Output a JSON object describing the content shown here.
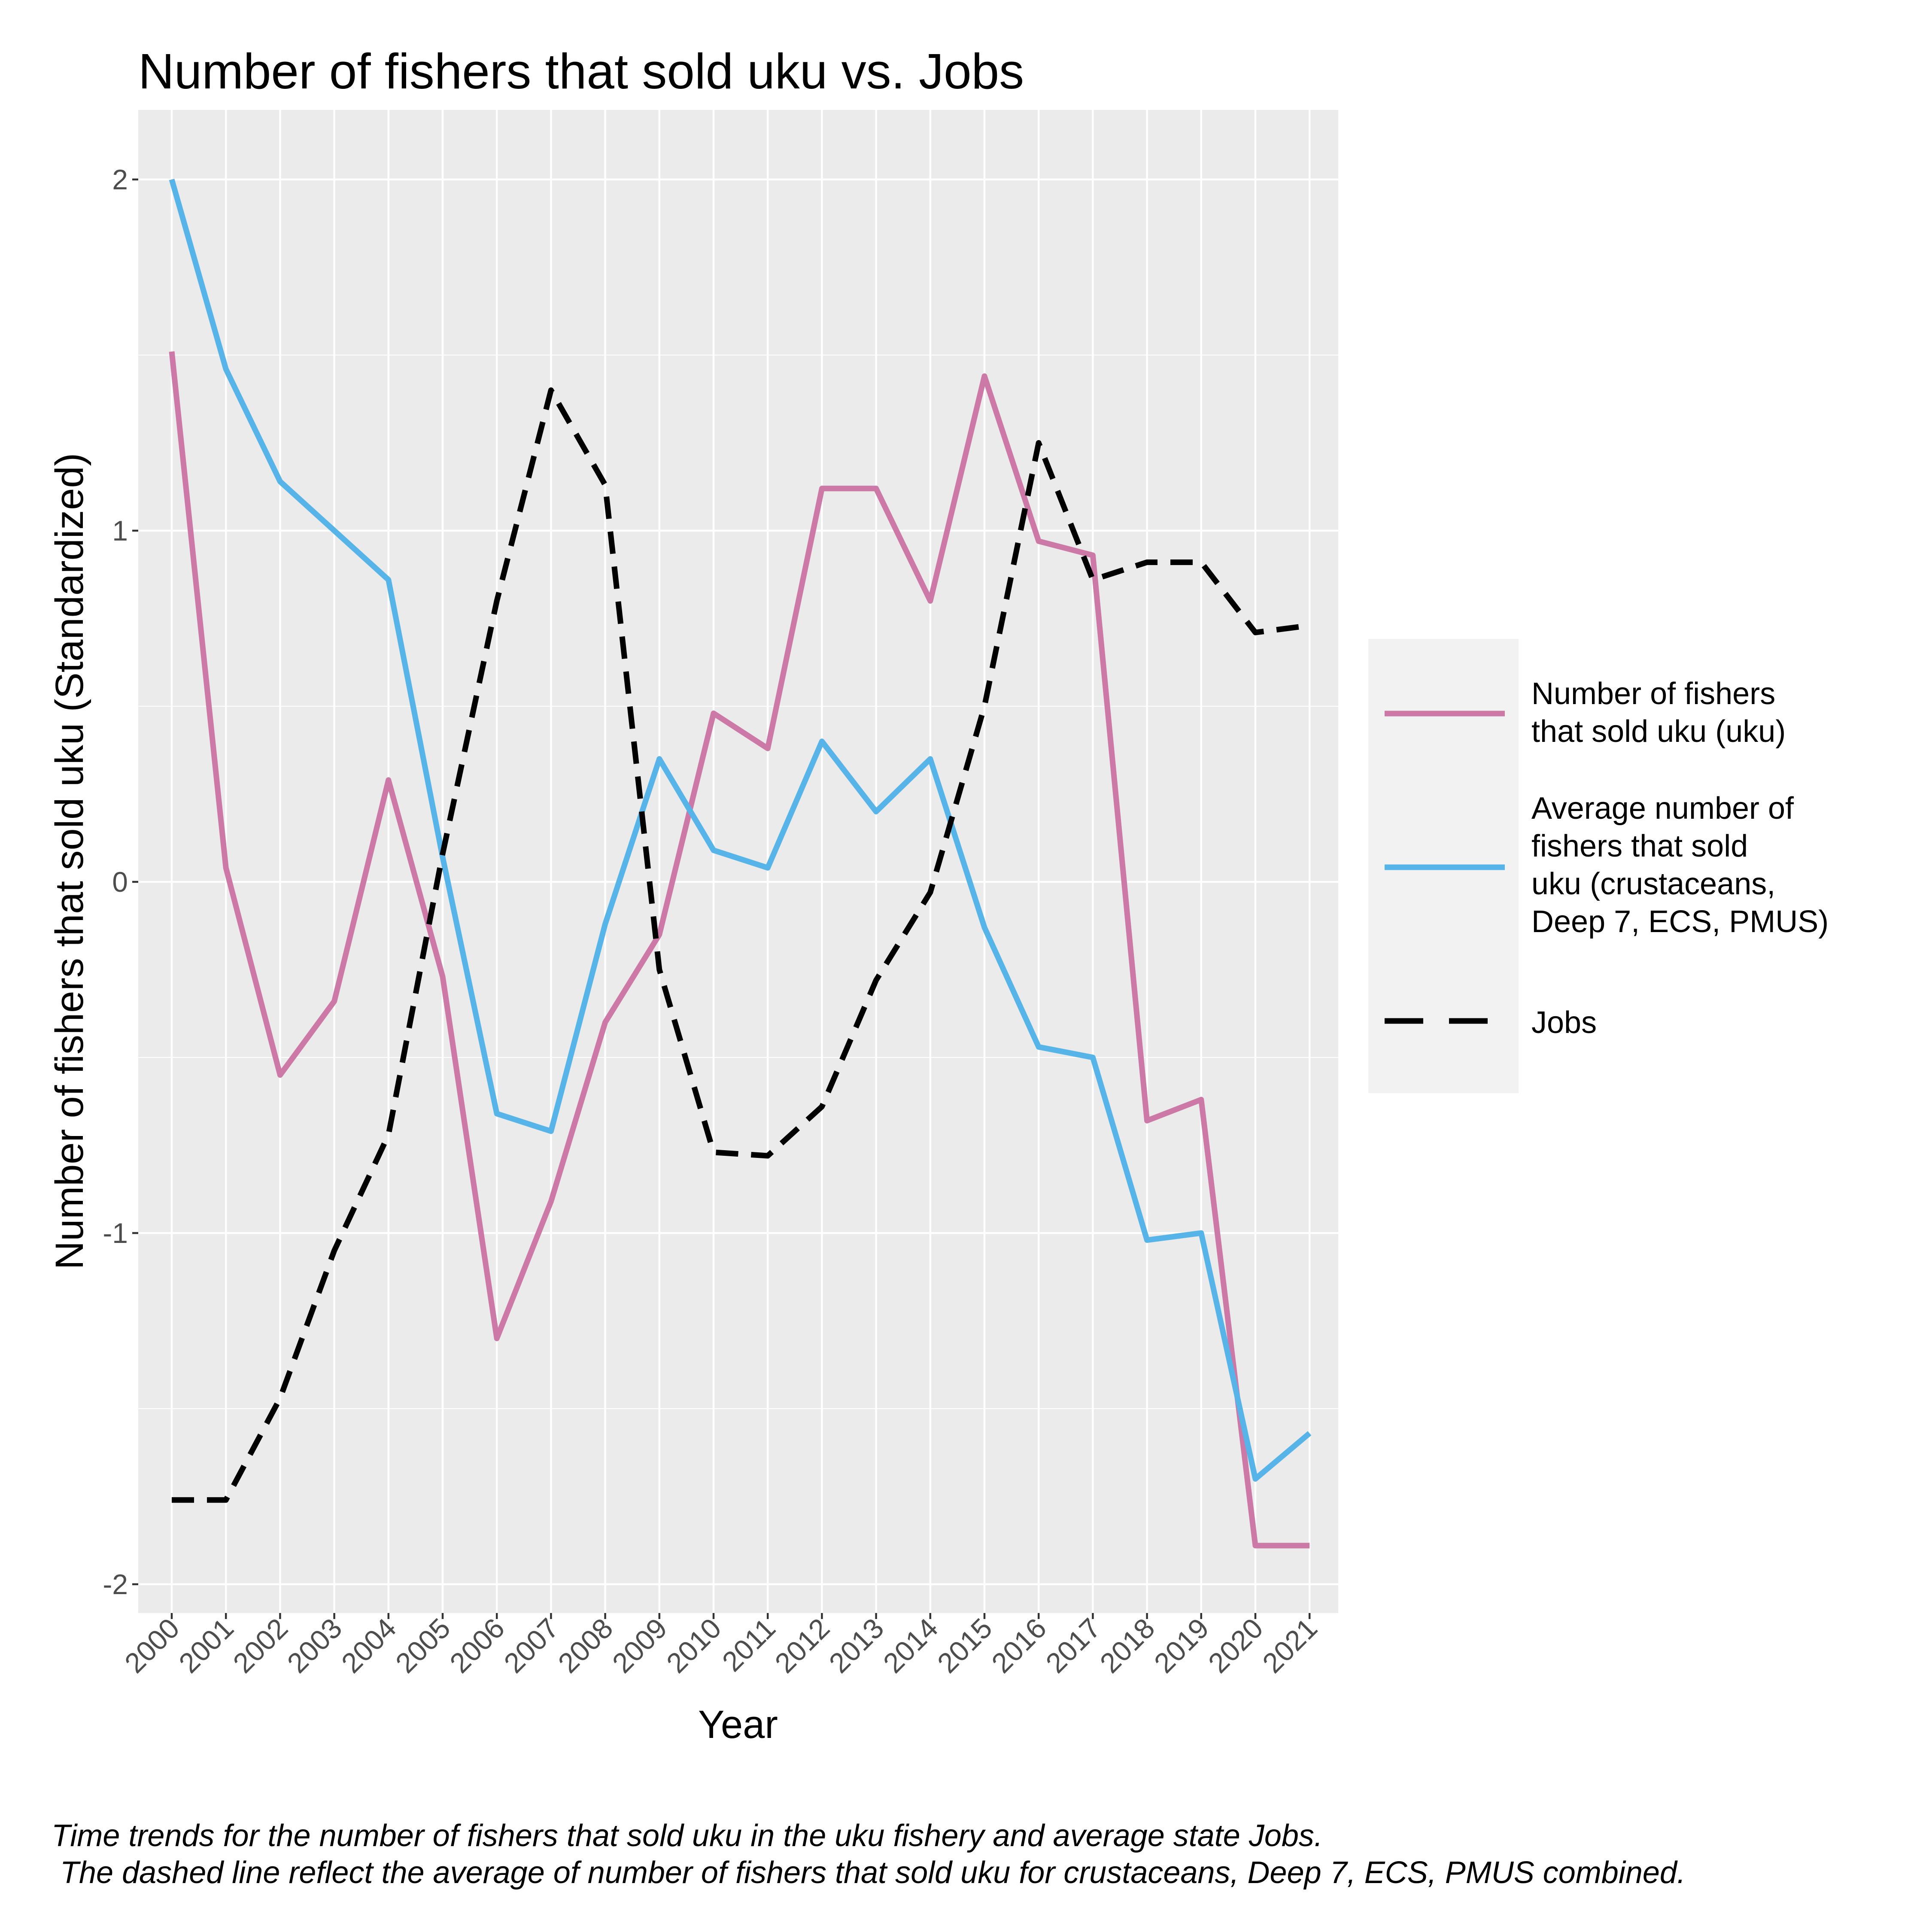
{
  "chart_data": {
    "type": "line",
    "title": "Number of fishers that sold uku vs. Jobs",
    "xlabel": "Year",
    "ylabel": "Number of fishers that sold uku (Standardized)",
    "x": [
      "2000",
      "2001",
      "2002",
      "2003",
      "2004",
      "2005",
      "2006",
      "2007",
      "2008",
      "2009",
      "2010",
      "2011",
      "2012",
      "2013",
      "2014",
      "2015",
      "2016",
      "2017",
      "2018",
      "2019",
      "2020",
      "2021"
    ],
    "y_ticks": [
      "-2",
      "-1",
      "0",
      "1",
      "2"
    ],
    "ylim": [
      -2.2,
      2.2
    ],
    "grid": true,
    "legend_position": "right",
    "series": [
      {
        "name": "Number of fishers that sold uku (uku)",
        "name_lines": [
          "Number of fishers",
          "that sold uku (uku)"
        ],
        "color": "#CC79A7",
        "dash": "solid",
        "values": [
          1.51,
          0.04,
          -0.55,
          -0.34,
          0.29,
          -0.27,
          -1.3,
          -0.91,
          -0.4,
          -0.15,
          0.48,
          0.38,
          1.12,
          1.12,
          0.8,
          1.44,
          0.97,
          0.93,
          -0.68,
          -0.62,
          -1.89,
          -1.89
        ]
      },
      {
        "name": "Average number of fishers that sold uku (crustaceans, Deep 7, ECS, PMUS)",
        "name_lines": [
          "Average number of",
          "fishers that sold",
          "uku (crustaceans,",
          "Deep 7, ECS, PMUS)"
        ],
        "color": "#56B4E9",
        "dash": "solid",
        "values": [
          2.0,
          1.46,
          1.14,
          1.0,
          0.86,
          0.07,
          -0.66,
          -0.71,
          -0.12,
          0.35,
          0.09,
          0.04,
          0.4,
          0.2,
          0.35,
          -0.13,
          -0.47,
          -0.5,
          -1.02,
          -1.0,
          -1.7,
          -1.57
        ]
      },
      {
        "name": "Jobs",
        "name_lines": [
          "Jobs"
        ],
        "color": "#000000",
        "dash": "dashed",
        "values": [
          -1.76,
          -1.76,
          -1.47,
          -1.05,
          -0.72,
          0.08,
          0.8,
          1.4,
          1.13,
          -0.25,
          -0.77,
          -0.78,
          -0.64,
          -0.28,
          -0.03,
          0.5,
          1.25,
          0.86,
          0.91,
          0.91,
          0.71,
          0.73
        ]
      }
    ],
    "caption_lines": [
      "Time trends for the number of fishers that sold uku in the uku fishery and average state Jobs.",
      " The dashed line reflect the average of number of fishers that sold uku for crustaceans, Deep 7, ECS, PMUS combined."
    ]
  }
}
